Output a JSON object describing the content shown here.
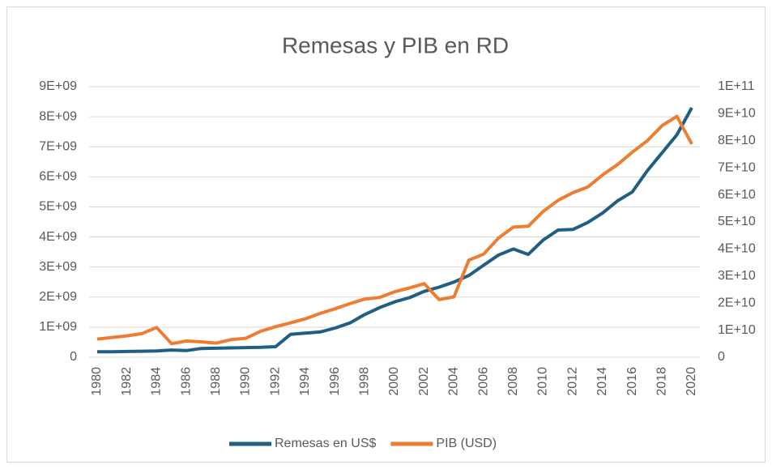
{
  "chart_data": {
    "type": "line",
    "title": "Remesas y PIB en RD",
    "categories": [
      "1980",
      null,
      "1982",
      null,
      "1984",
      null,
      "1986",
      null,
      "1988",
      null,
      "1990",
      null,
      "1992",
      null,
      "1994",
      null,
      "1996",
      null,
      "1998",
      null,
      "2000",
      null,
      "2002",
      null,
      "2004",
      null,
      "2006",
      null,
      "2008",
      null,
      "2010",
      null,
      "2012",
      null,
      "2014",
      null,
      "2016",
      null,
      "2018",
      null,
      "2020"
    ],
    "series": [
      {
        "name": "Remesas en US$",
        "color": "#1f5f82",
        "values": [
          180000000,
          180000000,
          190000000,
          200000000,
          210000000,
          240000000,
          220000000,
          290000000,
          300000000,
          310000000,
          320000000,
          330000000,
          350000000,
          760000000,
          800000000,
          840000000,
          970000000,
          1140000000,
          1420000000,
          1650000000,
          1840000000,
          1980000000,
          2190000000,
          2330000000,
          2500000000,
          2720000000,
          3060000000,
          3400000000,
          3600000000,
          3420000000,
          3900000000,
          4230000000,
          4250000000,
          4480000000,
          4800000000,
          5200000000,
          5500000000,
          6200000000,
          6800000000,
          7400000000,
          8300000000
        ]
      },
      {
        "name": "PIB (USD)",
        "color": "#ed7d31",
        "axis": "y2",
        "values": [
          6700000000,
          7300000000,
          7900000000,
          8700000000,
          11000000000,
          5000000000,
          6000000000,
          5700000000,
          5200000000,
          6500000000,
          7000000000,
          9600000000,
          11300000000,
          12700000000,
          14200000000,
          16200000000,
          17900000000,
          19800000000,
          21500000000,
          22100000000,
          24200000000,
          25600000000,
          27200000000,
          21300000000,
          22300000000,
          35900000000,
          38100000000,
          44100000000,
          48100000000,
          48400000000,
          53900000000,
          58000000000,
          60800000000,
          62900000000,
          67400000000,
          71200000000,
          75800000000,
          80000000000,
          85600000000,
          89000000000,
          78800000000
        ]
      }
    ],
    "ylim": [
      0,
      9000000000
    ],
    "yticks": [
      0,
      {
        "value": 1000000000,
        "label": "1E+09"
      },
      {
        "value": 2000000000,
        "label": "2E+09"
      },
      {
        "value": 3000000000,
        "label": "3E+09"
      },
      {
        "value": 4000000000,
        "label": "4E+09"
      },
      {
        "value": 5000000000,
        "label": "5E+09"
      },
      {
        "value": 6000000000,
        "label": "6E+09"
      },
      {
        "value": 7000000000,
        "label": "7E+09"
      },
      {
        "value": 8000000000,
        "label": "8E+09"
      },
      {
        "value": 9000000000,
        "label": "9E+09"
      }
    ],
    "y2lim": [
      0,
      100000000000
    ],
    "y2ticks": [
      0,
      {
        "value": 10000000000,
        "label": "1E+10"
      },
      {
        "value": 20000000000,
        "label": "2E+10"
      },
      {
        "value": 30000000000,
        "label": "3E+10"
      },
      {
        "value": 40000000000,
        "label": "4E+10"
      },
      {
        "value": 50000000000,
        "label": "5E+10"
      },
      {
        "value": 60000000000,
        "label": "6E+10"
      },
      {
        "value": 70000000000,
        "label": "7E+10"
      },
      {
        "value": 80000000000,
        "label": "8E+10"
      },
      {
        "value": 90000000000,
        "label": "9E+10"
      },
      {
        "value": 100000000000,
        "label": "1E+11"
      }
    ],
    "grid": true,
    "legend": "bottom"
  }
}
